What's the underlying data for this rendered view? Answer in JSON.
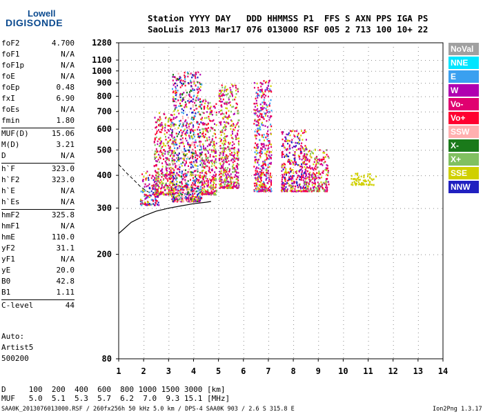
{
  "logo": {
    "line1": "Lowell",
    "line2": "DIGISONDE"
  },
  "header": {
    "row1": "Station YYYY DAY   DDD HHMMSS P1  FFS S AXN PPS IGA PS",
    "row2": "SaoLuis 2013 Mar17 076 013000 RSF 005 2 713 100 10+ 22"
  },
  "params": [
    {
      "name": "foF2",
      "value": "4.700"
    },
    {
      "name": "foF1",
      "value": "N/A"
    },
    {
      "name": "foF1p",
      "value": "N/A"
    },
    {
      "name": "foE",
      "value": "N/A"
    },
    {
      "name": "foEp",
      "value": "0.48"
    },
    {
      "name": "fxI",
      "value": "6.90"
    },
    {
      "name": "foEs",
      "value": "N/A"
    },
    {
      "name": "fmin",
      "value": "1.80"
    },
    {
      "name": "MUF(D)",
      "value": "15.06"
    },
    {
      "name": "M(D)",
      "value": "3.21"
    },
    {
      "name": "D",
      "value": "N/A"
    },
    {
      "name": "h`F",
      "value": "323.0"
    },
    {
      "name": "h`F2",
      "value": "323.0"
    },
    {
      "name": "h`E",
      "value": "N/A"
    },
    {
      "name": "h`Es",
      "value": "N/A"
    },
    {
      "name": "hmF2",
      "value": "325.8"
    },
    {
      "name": "hmF1",
      "value": "N/A"
    },
    {
      "name": "hmE",
      "value": "110.0"
    },
    {
      "name": "yF2",
      "value": "31.1"
    },
    {
      "name": "yF1",
      "value": "N/A"
    },
    {
      "name": "yE",
      "value": "20.0"
    },
    {
      "name": "B0",
      "value": "42.8"
    },
    {
      "name": "B1",
      "value": "1.11"
    },
    {
      "name": "C-level",
      "value": "44"
    }
  ],
  "auto": {
    "line1": "Auto:",
    "line2": "Artist5",
    "line3": "500200"
  },
  "legend": [
    {
      "label": "NoVal",
      "color": "#a0a0a0"
    },
    {
      "label": "NNE",
      "color": "#00e5ff"
    },
    {
      "label": "E",
      "color": "#3aa0f0"
    },
    {
      "label": "W",
      "color": "#b000b0"
    },
    {
      "label": "Vo-",
      "color": "#e00070"
    },
    {
      "label": "Vo+",
      "color": "#ff0030"
    },
    {
      "label": "SSW",
      "color": "#ffb0b0"
    },
    {
      "label": "X-",
      "color": "#1a7a1a"
    },
    {
      "label": "X+",
      "color": "#80c060"
    },
    {
      "label": "SSE",
      "color": "#d0d000"
    },
    {
      "label": "NNW",
      "color": "#2020c0"
    }
  ],
  "footer": {
    "d_row": "D     100  200  400  600  800 1000 1500 3000 [km]",
    "muf_row": "MUF   5.0  5.1  5.3  5.7  6.2  7.0  9.3 15.1 [MHz]",
    "info": "SAA0K_2013076013000.RSF / 260fx256h 50 kHz 5.0 km / DPS-4 SAA0K 903 / 2.6 S 315.8 E",
    "version": "Ion2Png 1.3.17"
  },
  "chart_data": {
    "type": "scatter",
    "title": "",
    "xlabel": "",
    "ylabel": "",
    "xlim": [
      1,
      14
    ],
    "ylim": [
      80,
      1280
    ],
    "yscale": "log",
    "xticks": [
      1,
      2,
      3,
      4,
      5,
      6,
      7,
      8,
      9,
      10,
      11,
      12,
      13,
      14
    ],
    "yticks": [
      80,
      200,
      300,
      400,
      500,
      600,
      700,
      800,
      900,
      1000,
      1100,
      1280
    ],
    "grid": true,
    "echo_clusters": [
      {
        "x": [
          1.85,
          2.6
        ],
        "y": [
          310,
          420
        ],
        "colors": [
          "Vo+",
          "Vo-",
          "W",
          "NNW",
          "SSE",
          "E"
        ]
      },
      {
        "x": [
          2.4,
          3.2
        ],
        "y": [
          340,
          700
        ],
        "colors": [
          "Vo+",
          "Vo-",
          "W",
          "SSE",
          "X+"
        ]
      },
      {
        "x": [
          3.1,
          4.3
        ],
        "y": [
          320,
          1000
        ],
        "colors": [
          "Vo+",
          "Vo-",
          "W",
          "SSE",
          "NNW",
          "X-",
          "E",
          "SSW"
        ]
      },
      {
        "x": [
          4.3,
          4.9
        ],
        "y": [
          340,
          800
        ],
        "colors": [
          "SSE",
          "W",
          "Vo-",
          "Vo+",
          "X+"
        ]
      },
      {
        "x": [
          5.0,
          5.8
        ],
        "y": [
          360,
          900
        ],
        "colors": [
          "SSE",
          "W",
          "Vo+",
          "Vo-",
          "X+"
        ]
      },
      {
        "x": [
          6.4,
          7.1
        ],
        "y": [
          350,
          930
        ],
        "colors": [
          "SSE",
          "W",
          "Vo+",
          "Vo-",
          "E"
        ]
      },
      {
        "x": [
          7.5,
          8.5
        ],
        "y": [
          350,
          600
        ],
        "colors": [
          "W",
          "Vo-",
          "SSE",
          "Vo+",
          "NNW"
        ]
      },
      {
        "x": [
          8.4,
          9.4
        ],
        "y": [
          350,
          510
        ],
        "colors": [
          "W",
          "Vo-",
          "SSE",
          "Vo+",
          "X+"
        ]
      },
      {
        "x": [
          10.3,
          11.3
        ],
        "y": [
          370,
          410
        ],
        "colors": [
          "SSE"
        ]
      }
    ],
    "trace_curve": {
      "x": [
        1,
        1.5,
        2,
        2.5,
        3,
        3.5,
        4,
        4.5,
        4.7
      ],
      "y": [
        240,
        265,
        280,
        292,
        300,
        306,
        312,
        316,
        318
      ]
    },
    "dashed_curve": {
      "x": [
        1,
        1.3,
        1.6,
        1.9,
        2.2
      ],
      "y": [
        440,
        410,
        385,
        360,
        345
      ]
    }
  }
}
